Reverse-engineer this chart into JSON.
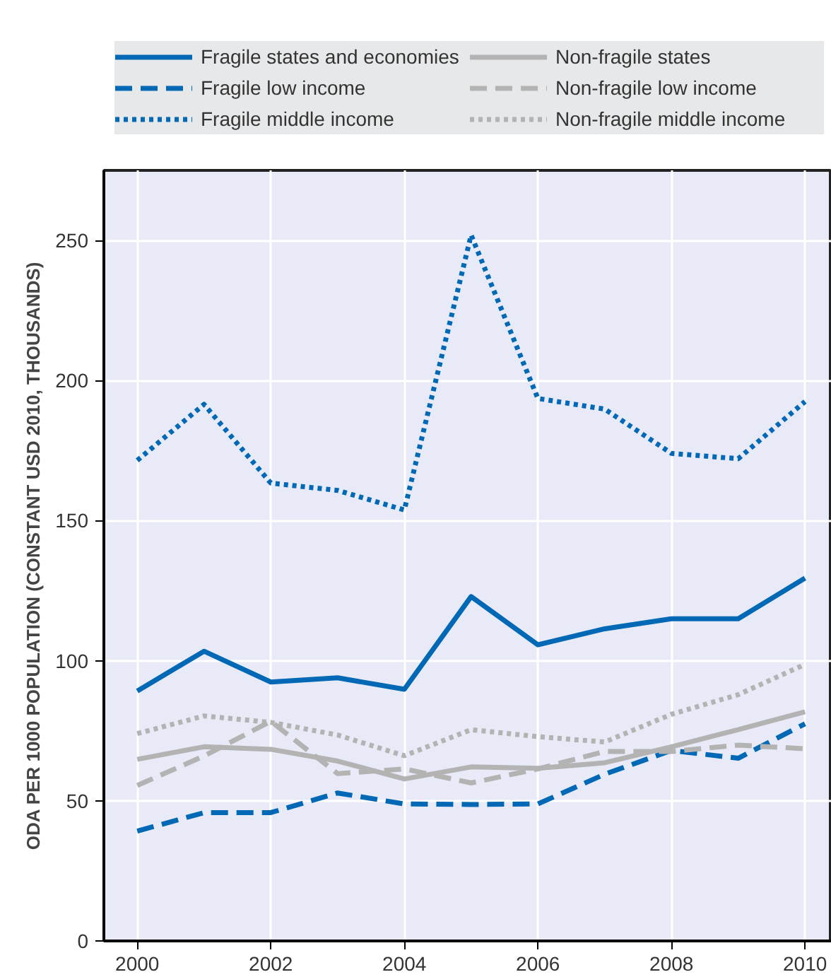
{
  "chart_data": {
    "type": "line",
    "ylabel": "ODA PER 1000 POPULATION (CONSTANT USD 2010, THOUSANDS)",
    "x": [
      2000,
      2001,
      2002,
      2003,
      2004,
      2005,
      2006,
      2007,
      2008,
      2009,
      2010
    ],
    "xlim": [
      1999.5,
      2010.4
    ],
    "xticks": [
      2000,
      2002,
      2004,
      2006,
      2008,
      2010
    ],
    "ylim": [
      0,
      275
    ],
    "yticks": [
      0,
      50,
      100,
      150,
      200,
      250
    ],
    "grid": true,
    "legend": "top",
    "marker": "none",
    "series": [
      {
        "name": "Fragile states and economies",
        "color": "#0068b5",
        "line_style": "solid",
        "values": [
          89.2,
          103.4,
          92.4,
          93.9,
          89.8,
          122.9,
          105.7,
          111.4,
          115,
          115,
          129.5
        ]
      },
      {
        "name": "Fragile low income",
        "color": "#0068b5",
        "line_style": "dashed",
        "values": [
          39.2,
          45.8,
          45.8,
          52.8,
          48.9,
          48.7,
          48.9,
          59.5,
          68,
          65.2,
          77.5
        ]
      },
      {
        "name": "Fragile middle income",
        "color": "#0068b5",
        "line_style": "dotted",
        "values": [
          171.5,
          191.5,
          163.4,
          160.8,
          153.8,
          251.9,
          193.6,
          189.8,
          174,
          172.1,
          192.5
        ]
      },
      {
        "name": "Non-fragile states",
        "color": "#b3b3b3",
        "line_style": "solid",
        "values": [
          64.8,
          69.3,
          68.4,
          64.2,
          57.8,
          62.1,
          61.6,
          63.6,
          69.3,
          75.4,
          81.8
        ]
      },
      {
        "name": "Non-fragile low income",
        "color": "#b3b3b3",
        "line_style": "dashed",
        "values": [
          55.5,
          66,
          78.4,
          59.7,
          61.4,
          56.4,
          61.4,
          67.6,
          67.6,
          69.9,
          68.6
        ]
      },
      {
        "name": "Non-fragile middle income",
        "color": "#b3b3b3",
        "line_style": "dotted",
        "values": [
          74,
          80.3,
          78,
          73.5,
          66.1,
          75.4,
          72.9,
          71,
          80.9,
          87.9,
          98.7
        ]
      }
    ]
  }
}
